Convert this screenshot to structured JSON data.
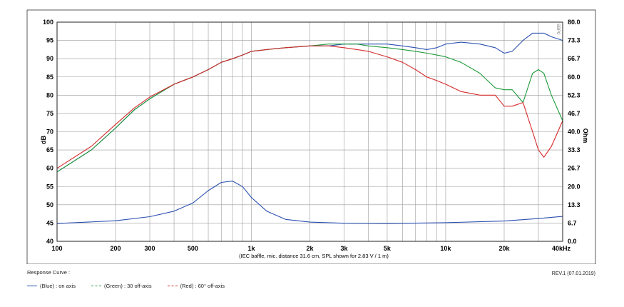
{
  "chart_data": {
    "type": "line",
    "x_scale": "log",
    "xlim": [
      100,
      40000
    ],
    "ylim": [
      40,
      100
    ],
    "y2lim": [
      0,
      80
    ],
    "ylabel": "dB",
    "y2label": "Ohm",
    "xlabel": "(IEC baffle, mic. distance 31.6 cm, SPL shown for 2.83 V / 1 m)",
    "x_ticks": [
      {
        "v": 100,
        "label": "100"
      },
      {
        "v": 200,
        "label": "200"
      },
      {
        "v": 300,
        "label": "300"
      },
      {
        "v": 500,
        "label": "500"
      },
      {
        "v": 1000,
        "label": "1k"
      },
      {
        "v": 2000,
        "label": "2k"
      },
      {
        "v": 3000,
        "label": "3k"
      },
      {
        "v": 5000,
        "label": "5k"
      },
      {
        "v": 10000,
        "label": "10k"
      },
      {
        "v": 20000,
        "label": "20k"
      },
      {
        "v": 40000,
        "label": "40kHz"
      }
    ],
    "y_ticks": [
      "100",
      "95",
      "90",
      "85",
      "80",
      "75",
      "70",
      "65",
      "60",
      "55",
      "50",
      "45",
      "40"
    ],
    "y2_ticks": [
      "80.0",
      "73.3",
      "66.7",
      "60.0",
      "52.3",
      "46.7",
      "40.0",
      "33.3",
      "26.7",
      "20.0",
      "13.3",
      "6.7",
      "0.0"
    ],
    "series": [
      {
        "name": "Blue",
        "color": "#2a4fb0",
        "axis": "dB",
        "x": [
          100,
          150,
          200,
          250,
          300,
          400,
          500,
          600,
          700,
          800,
          900,
          1000,
          1200,
          1500,
          2000,
          2500,
          3000,
          3500,
          4000,
          5000,
          6000,
          7000,
          8000,
          9000,
          10000,
          12000,
          15000,
          18000,
          20000,
          22000,
          25000,
          28000,
          30000,
          32000,
          35000,
          40000
        ],
        "y": [
          59,
          65,
          71,
          76,
          79,
          83,
          85,
          87,
          89,
          90,
          91,
          92,
          92.5,
          93,
          93.5,
          93.5,
          94,
          94,
          94,
          94,
          93.5,
          93,
          92.5,
          93,
          94,
          94.5,
          94,
          93,
          91.5,
          92,
          95,
          97,
          97,
          97,
          96,
          95
        ]
      },
      {
        "name": "Green",
        "color": "#1e9a3a",
        "axis": "dB",
        "x": [
          100,
          150,
          200,
          250,
          300,
          400,
          500,
          600,
          700,
          800,
          900,
          1000,
          1200,
          1500,
          2000,
          2500,
          3000,
          3500,
          4000,
          5000,
          6000,
          7000,
          8000,
          9000,
          10000,
          12000,
          15000,
          18000,
          20000,
          22000,
          25000,
          28000,
          30000,
          32000,
          35000,
          40000
        ],
        "y": [
          59,
          65,
          71,
          76,
          79,
          83,
          85,
          87,
          89,
          90,
          91,
          92,
          92.5,
          93,
          93.5,
          94,
          94,
          94,
          93.5,
          93,
          92.5,
          92,
          91.5,
          91,
          90.5,
          89,
          86,
          82,
          81.5,
          81.5,
          78,
          86,
          87,
          86,
          80,
          73
        ]
      },
      {
        "name": "Red",
        "color": "#d62a2a",
        "axis": "dB",
        "x": [
          100,
          150,
          200,
          250,
          300,
          400,
          500,
          600,
          700,
          800,
          900,
          1000,
          1200,
          1500,
          2000,
          2500,
          3000,
          3500,
          4000,
          5000,
          6000,
          7000,
          8000,
          9000,
          10000,
          12000,
          15000,
          18000,
          20000,
          22000,
          25000,
          28000,
          30000,
          32000,
          35000,
          40000
        ],
        "y": [
          60,
          66,
          72,
          76.5,
          79.5,
          83,
          85,
          87,
          89,
          90,
          91,
          92,
          92.5,
          93,
          93.5,
          93.5,
          93,
          92.5,
          92,
          90.5,
          89,
          87,
          85,
          84,
          83,
          81,
          80,
          80,
          77,
          77,
          78,
          70,
          65,
          63,
          66,
          73
        ]
      },
      {
        "name": "Impedance",
        "color": "#2a4fb0",
        "axis": "Ohm",
        "x": [
          100,
          200,
          300,
          400,
          500,
          600,
          700,
          800,
          900,
          1000,
          1200,
          1500,
          2000,
          3000,
          5000,
          10000,
          20000,
          30000,
          40000
        ],
        "y": [
          6.5,
          7.5,
          9,
          11,
          14,
          18.5,
          21.5,
          22,
          20,
          16,
          11,
          8,
          7,
          6.6,
          6.5,
          6.8,
          7.4,
          8.3,
          9.1
        ]
      }
    ]
  },
  "chart_id": "SBP0",
  "footer": {
    "response_curve": "Response Curve :",
    "revision": "REV.1 (07.01.2019)",
    "legend": [
      {
        "text": "(Blue)  : on axis",
        "color": "#2a4fb0"
      },
      {
        "text": "(Green) : 30 off-axis",
        "color": "#1e9a3a"
      },
      {
        "text": "(Red) : 60° off-axis",
        "color": "#d62a2a"
      }
    ]
  }
}
